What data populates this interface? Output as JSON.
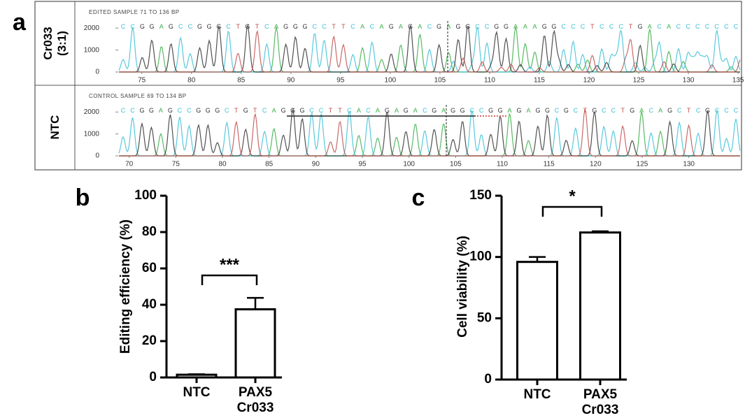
{
  "chromatogram": {
    "panel_label": "a",
    "rows": [
      {
        "row_label": "Cr033\n(3:1)",
        "title": "EDITED SAMPLE 71 TO 136 BP",
        "sequence": "CCGGAGCCGGGCTGTCAGGGCCTTCACAGAGACGAGGCCGGAAAGGCCCTCCCTGACACCCCCCC",
        "xlim": [
          72.7,
          135.2
        ],
        "xticks": [
          75,
          80,
          85,
          90,
          95,
          100,
          105,
          110,
          115,
          120,
          125,
          130,
          135
        ],
        "ylim": [
          0,
          2900
        ],
        "yticks": [
          0,
          1000,
          2000
        ]
      },
      {
        "row_label": "NTC",
        "title": "CONTROL SAMPLE 69 TO 134 BP",
        "sequence": "CCGGAGCCGGGCTGTCAGGGCCTTCACAGAGACGAGGCCGGAGAGGCGCTGCCTGACAGCTCGCCC",
        "xlim": [
          68.9,
          135.5
        ],
        "xticks": [
          70,
          75,
          80,
          85,
          90,
          95,
          100,
          105,
          110,
          115,
          120,
          125,
          130
        ],
        "ylim": [
          0,
          2900
        ],
        "yticks": [
          0,
          1000,
          2000
        ]
      }
    ]
  },
  "chart_data": [
    {
      "type": "bar",
      "panel_label": "b",
      "ylabel": "Editing efficiency (%)",
      "categories": [
        "NTC",
        "PAX5\nCr033"
      ],
      "values": [
        1.5,
        37.5
      ],
      "errors": [
        0.3,
        6.3
      ],
      "color": "#ffffff",
      "ylim": [
        0,
        100
      ],
      "yticks": [
        0,
        20,
        40,
        60,
        80,
        100
      ],
      "significance": "***"
    },
    {
      "type": "bar",
      "panel_label": "c",
      "ylabel": "Cell viability (%)",
      "categories": [
        "NTC",
        "PAX5\nCr033"
      ],
      "values": [
        96,
        120
      ],
      "errors": [
        4,
        1
      ],
      "color": "#ffffff",
      "ylim": [
        0,
        150
      ],
      "yticks": [
        0,
        50,
        100,
        150
      ],
      "significance": "*"
    }
  ]
}
